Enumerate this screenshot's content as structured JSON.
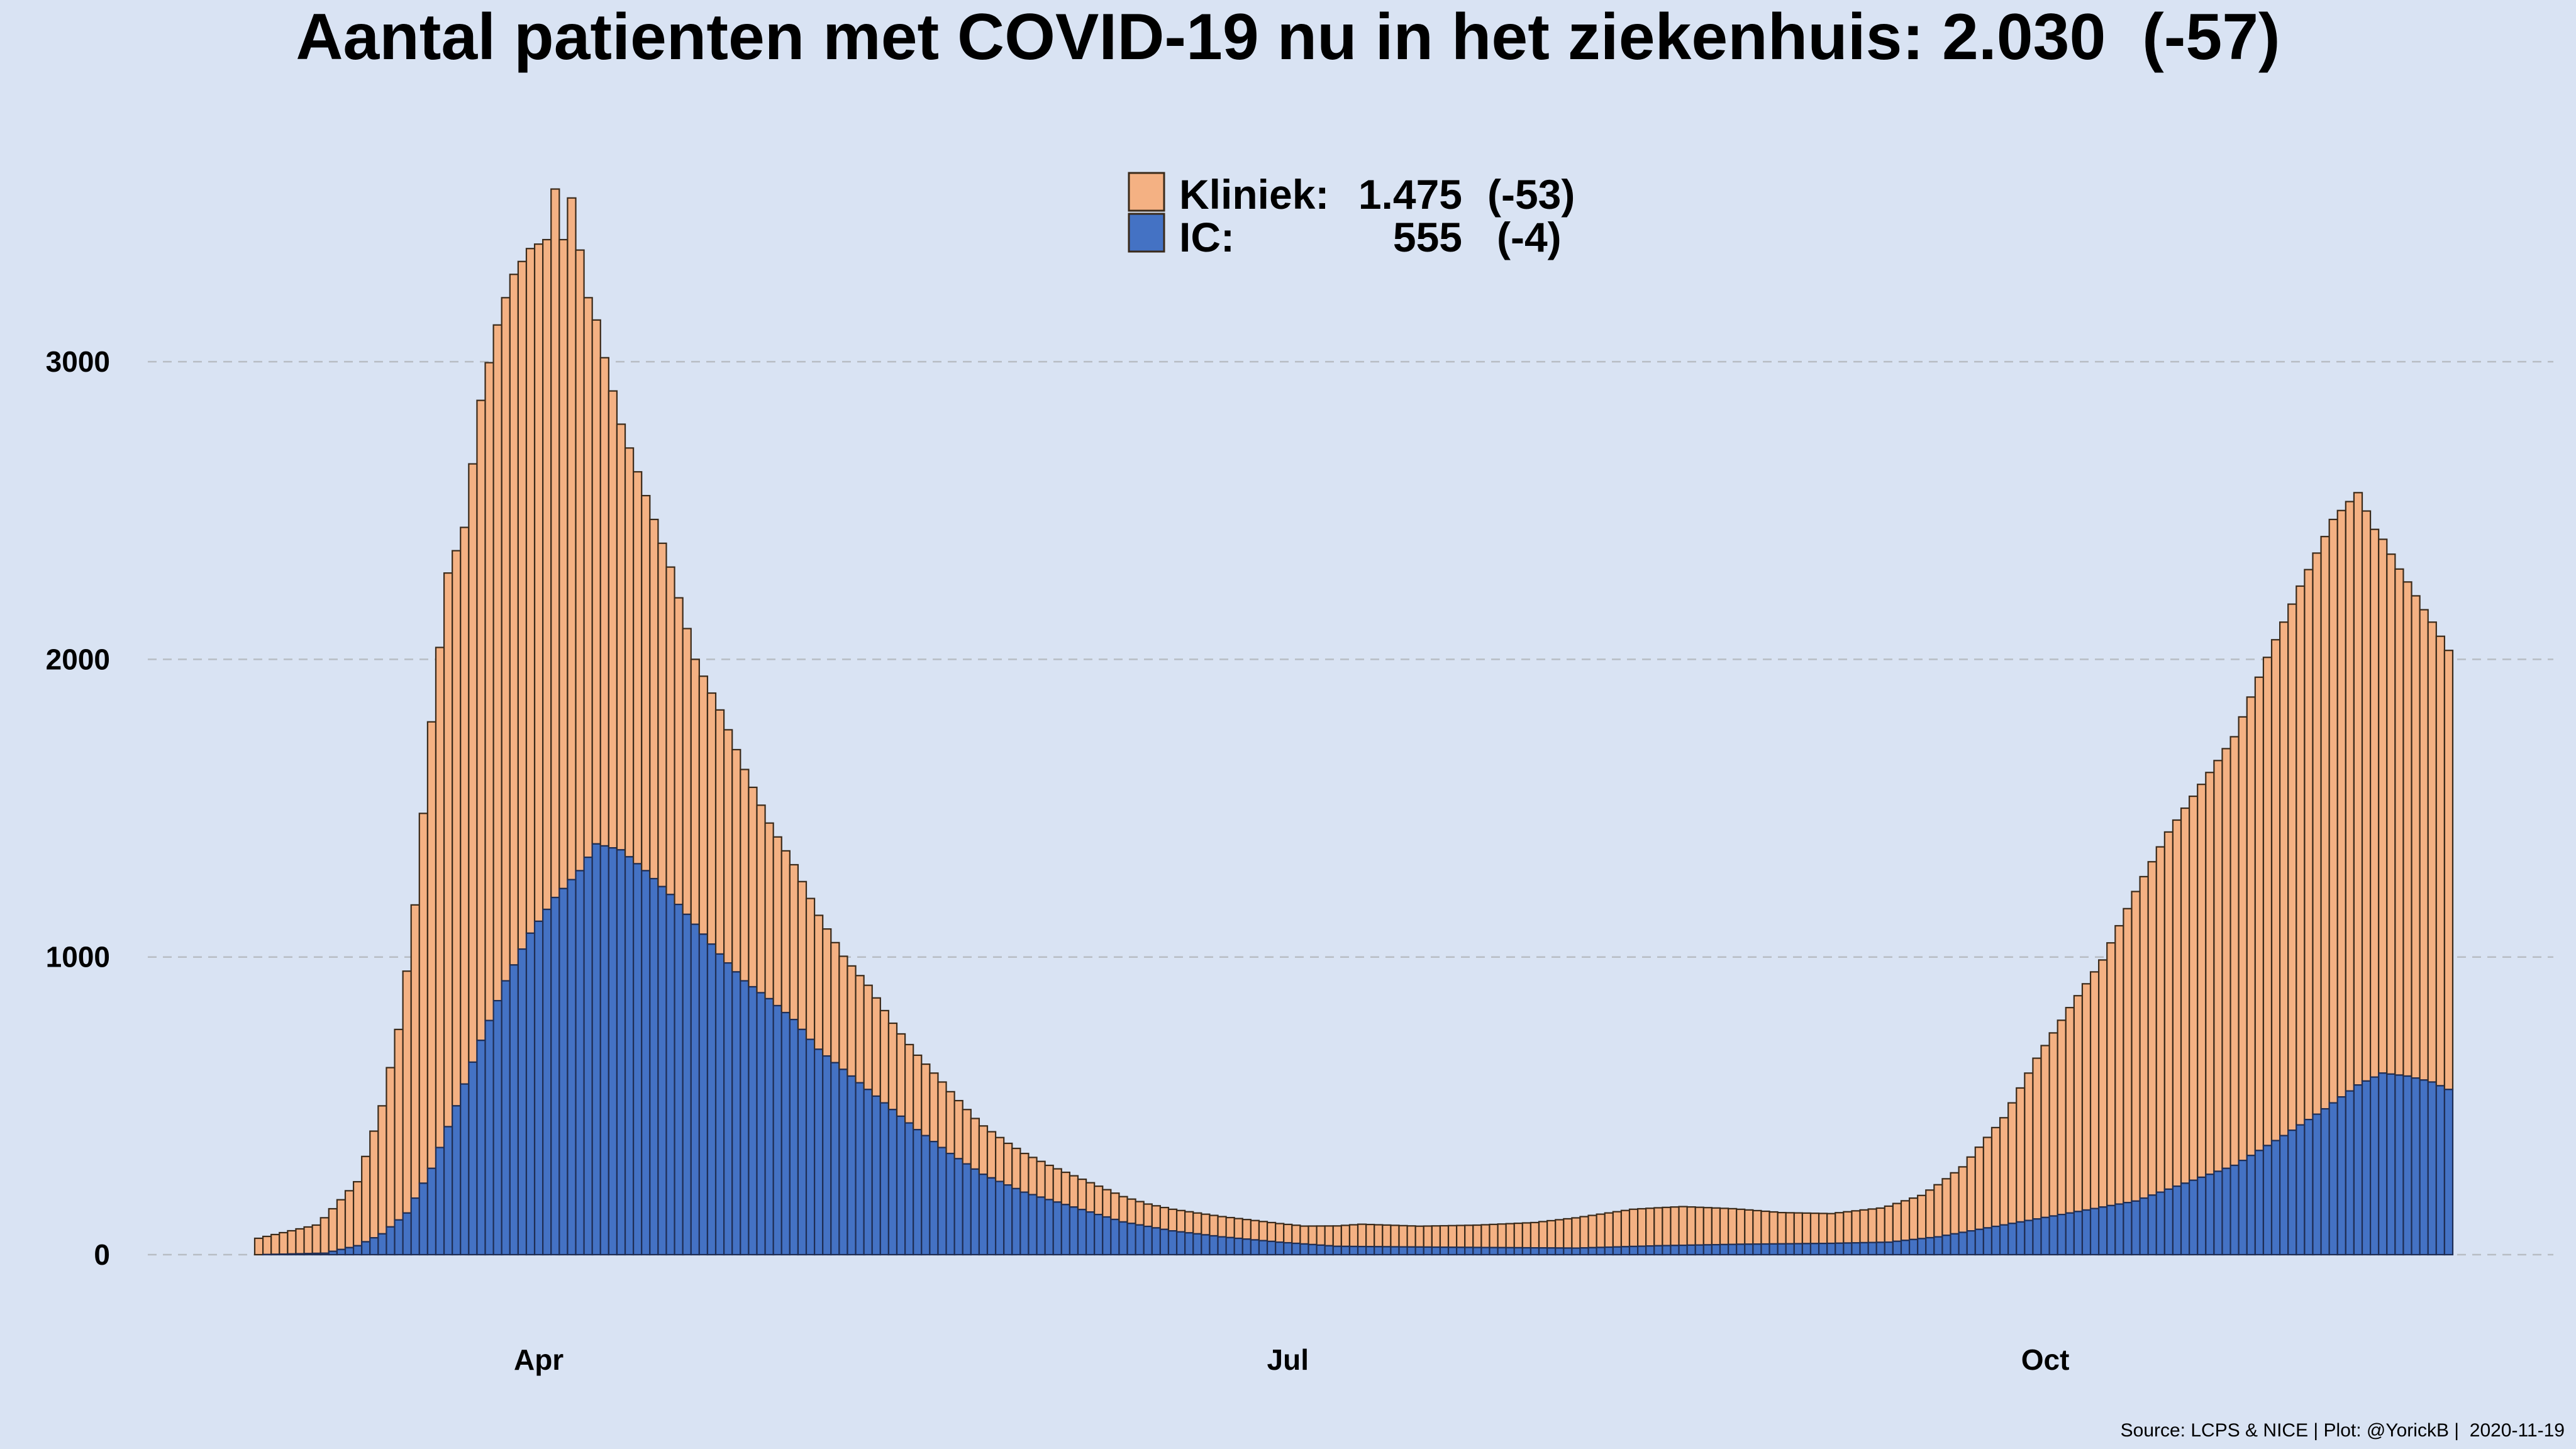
{
  "title": "Aantal patienten met COVID-19 nu in het ziekenhuis: 2.030  (-57)",
  "source": "Source: LCPS & NICE | Plot: @YorickB |  2020-11-19",
  "legend": [
    {
      "label": "Kliniek:",
      "value": "1.475",
      "change": "(-53)",
      "color": "#f4b183"
    },
    {
      "label": "IC:",
      "value": "555",
      "change": "(-4)",
      "color": "#4472c4"
    }
  ],
  "colors": {
    "kliniek": "#f4b183",
    "ic": "#4472c4",
    "bar_border": "#3a2a1a",
    "grid": "#b8bdc4",
    "background": "#d9e3f3"
  },
  "chart_data": {
    "type": "bar",
    "stacked": true,
    "x_start": "2020-02-27",
    "x_end": "2020-11-19",
    "x_ticks": [
      {
        "date": "2020-04-01",
        "label": "Apr"
      },
      {
        "date": "2020-07-01",
        "label": "Jul"
      },
      {
        "date": "2020-10-01",
        "label": "Oct"
      }
    ],
    "y_ticks": [
      0,
      1000,
      2000,
      3000
    ],
    "ylim": [
      0,
      3800
    ],
    "grid": "horizontal dashed",
    "legend_position": "top-center",
    "series_keypoints": [
      {
        "name": "Kliniek",
        "points": [
          [
            "2020-02-27",
            55
          ],
          [
            "2020-03-05",
            95
          ],
          [
            "2020-03-10",
            215
          ],
          [
            "2020-03-13",
            430
          ],
          [
            "2020-03-15",
            640
          ],
          [
            "2020-03-17",
            985
          ],
          [
            "2020-03-19",
            1500
          ],
          [
            "2020-03-21",
            1860
          ],
          [
            "2020-03-23",
            1870
          ],
          [
            "2020-03-25",
            2150
          ],
          [
            "2020-03-27",
            2270
          ],
          [
            "2020-03-29",
            2320
          ],
          [
            "2020-03-31",
            2300
          ],
          [
            "2020-04-02",
            2250
          ],
          [
            "2020-04-03",
            2380
          ],
          [
            "2020-04-04",
            2180
          ],
          [
            "2020-04-05",
            2290
          ],
          [
            "2020-04-07",
            1880
          ],
          [
            "2020-04-09",
            1640
          ],
          [
            "2020-04-11",
            1430
          ],
          [
            "2020-04-14",
            1260
          ],
          [
            "2020-04-17",
            1100
          ],
          [
            "2020-04-20",
            890
          ],
          [
            "2020-04-23",
            820
          ],
          [
            "2020-04-26",
            710
          ],
          [
            "2020-04-29",
            590
          ],
          [
            "2020-05-02",
            520
          ],
          [
            "2020-05-05",
            450
          ],
          [
            "2020-05-08",
            380
          ],
          [
            "2020-05-11",
            350
          ],
          [
            "2020-05-14",
            290
          ],
          [
            "2020-05-17",
            250
          ],
          [
            "2020-05-20",
            220
          ],
          [
            "2020-05-24",
            170
          ],
          [
            "2020-05-28",
            140
          ],
          [
            "2020-06-02",
            115
          ],
          [
            "2020-06-08",
            95
          ],
          [
            "2020-06-14",
            75
          ],
          [
            "2020-06-20",
            70
          ],
          [
            "2020-06-27",
            65
          ],
          [
            "2020-07-03",
            60
          ],
          [
            "2020-07-10",
            75
          ],
          [
            "2020-07-17",
            70
          ],
          [
            "2020-07-24",
            75
          ],
          [
            "2020-07-31",
            85
          ],
          [
            "2020-08-06",
            105
          ],
          [
            "2020-08-12",
            125
          ],
          [
            "2020-08-18",
            130
          ],
          [
            "2020-08-24",
            120
          ],
          [
            "2020-08-30",
            105
          ],
          [
            "2020-09-05",
            100
          ],
          [
            "2020-09-11",
            115
          ],
          [
            "2020-09-16",
            145
          ],
          [
            "2020-09-21",
            220
          ],
          [
            "2020-09-26",
            360
          ],
          [
            "2020-09-30",
            540
          ],
          [
            "2020-10-04",
            690
          ],
          [
            "2020-10-08",
            830
          ],
          [
            "2020-10-12",
            1040
          ],
          [
            "2020-10-16",
            1200
          ],
          [
            "2020-10-20",
            1320
          ],
          [
            "2020-10-24",
            1440
          ],
          [
            "2020-10-28",
            1640
          ],
          [
            "2020-11-01",
            1810
          ],
          [
            "2020-11-05",
            1960
          ],
          [
            "2020-11-08",
            1990
          ],
          [
            "2020-11-10",
            1840
          ],
          [
            "2020-11-13",
            1700
          ],
          [
            "2020-11-16",
            1580
          ],
          [
            "2020-11-19",
            1475
          ]
        ]
      },
      {
        "name": "IC",
        "points": [
          [
            "2020-02-27",
            0
          ],
          [
            "2020-03-06",
            5
          ],
          [
            "2020-03-10",
            30
          ],
          [
            "2020-03-13",
            70
          ],
          [
            "2020-03-16",
            140
          ],
          [
            "2020-03-19",
            290
          ],
          [
            "2020-03-22",
            500
          ],
          [
            "2020-03-25",
            720
          ],
          [
            "2020-03-28",
            920
          ],
          [
            "2020-03-31",
            1080
          ],
          [
            "2020-04-03",
            1200
          ],
          [
            "2020-04-06",
            1290
          ],
          [
            "2020-04-08",
            1380
          ],
          [
            "2020-04-11",
            1360
          ],
          [
            "2020-04-14",
            1290
          ],
          [
            "2020-04-17",
            1210
          ],
          [
            "2020-04-20",
            1110
          ],
          [
            "2020-04-23",
            1010
          ],
          [
            "2020-04-26",
            920
          ],
          [
            "2020-04-29",
            860
          ],
          [
            "2020-05-02",
            790
          ],
          [
            "2020-05-05",
            690
          ],
          [
            "2020-05-09",
            600
          ],
          [
            "2020-05-13",
            510
          ],
          [
            "2020-05-17",
            420
          ],
          [
            "2020-05-21",
            340
          ],
          [
            "2020-05-25",
            270
          ],
          [
            "2020-05-30",
            210
          ],
          [
            "2020-06-05",
            160
          ],
          [
            "2020-06-11",
            110
          ],
          [
            "2020-06-17",
            80
          ],
          [
            "2020-06-23",
            60
          ],
          [
            "2020-06-30",
            42
          ],
          [
            "2020-07-07",
            28
          ],
          [
            "2020-07-20",
            25
          ],
          [
            "2020-08-05",
            22
          ],
          [
            "2020-08-15",
            30
          ],
          [
            "2020-08-25",
            35
          ],
          [
            "2020-09-05",
            38
          ],
          [
            "2020-09-12",
            42
          ],
          [
            "2020-09-18",
            60
          ],
          [
            "2020-09-24",
            90
          ],
          [
            "2020-09-30",
            120
          ],
          [
            "2020-10-06",
            150
          ],
          [
            "2020-10-12",
            180
          ],
          [
            "2020-10-18",
            240
          ],
          [
            "2020-10-24",
            300
          ],
          [
            "2020-10-30",
            400
          ],
          [
            "2020-11-04",
            490
          ],
          [
            "2020-11-08",
            570
          ],
          [
            "2020-11-11",
            610
          ],
          [
            "2020-11-14",
            600
          ],
          [
            "2020-11-17",
            580
          ],
          [
            "2020-11-19",
            555
          ]
        ]
      }
    ]
  }
}
